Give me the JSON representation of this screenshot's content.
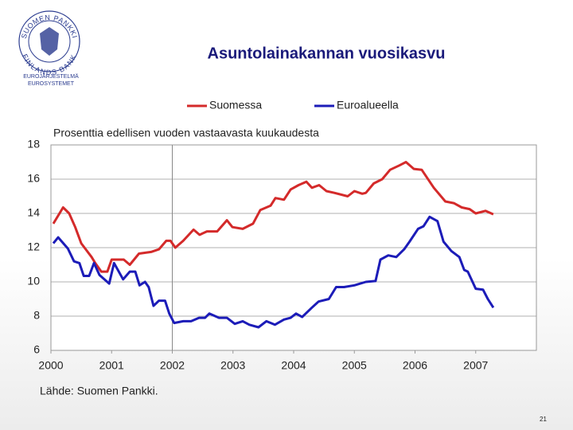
{
  "logo": {
    "ring_top": "SUOMEN PANKKI",
    "ring_bottom": "FINLANDS BANK",
    "line1": "EUROJÄRJESTELMÄ",
    "line2": "EUROSYSTEMET"
  },
  "source": "Lähde: Suomen Pankki.",
  "page_number": "21",
  "chart_data": {
    "type": "line",
    "title": "Asuntolainakannan vuosikasvu",
    "subtitle": "Prosenttia edellisen vuoden vastaavasta kuukaudesta",
    "xlim": [
      2000,
      2008
    ],
    "xticks": [
      2000,
      2001,
      2002,
      2003,
      2004,
      2005,
      2006,
      2007
    ],
    "ylim": [
      6,
      18
    ],
    "yticks": [
      6,
      8,
      10,
      12,
      14,
      16,
      18
    ],
    "grid": true,
    "vline": 2002,
    "legend": "top",
    "series": [
      {
        "name": "Suomessa",
        "color": "#d42a2a",
        "x": [
          2000.04,
          2000.2,
          2000.3,
          2000.4,
          2000.5,
          2000.67,
          2000.73,
          2000.83,
          2000.93,
          2001.0,
          2001.2,
          2001.3,
          2001.45,
          2001.65,
          2001.78,
          2001.9,
          2001.97,
          2002.05,
          2002.18,
          2002.35,
          2002.45,
          2002.57,
          2002.74,
          2002.9,
          2002.99,
          2003.16,
          2003.33,
          2003.45,
          2003.62,
          2003.7,
          2003.84,
          2003.95,
          2004.08,
          2004.21,
          2004.3,
          2004.42,
          2004.54,
          2004.67,
          2004.89,
          2005.0,
          2005.13,
          2005.19,
          2005.32,
          2005.46,
          2005.59,
          2005.74,
          2005.85,
          2005.98,
          2006.11,
          2006.31,
          2006.5,
          2006.64,
          2006.77,
          2006.9,
          2007.0,
          2007.16,
          2007.29
        ],
        "values": [
          13.4,
          14.35,
          14.0,
          13.2,
          12.25,
          11.45,
          11.1,
          10.6,
          10.6,
          11.3,
          11.3,
          11.0,
          11.65,
          11.75,
          11.9,
          12.4,
          12.4,
          12.0,
          12.4,
          13.05,
          12.75,
          12.95,
          12.95,
          13.6,
          13.2,
          13.1,
          13.4,
          14.2,
          14.45,
          14.9,
          14.8,
          15.4,
          15.65,
          15.85,
          15.5,
          15.65,
          15.3,
          15.2,
          15.0,
          15.3,
          15.15,
          15.2,
          15.75,
          16.0,
          16.55,
          16.8,
          17.0,
          16.6,
          16.55,
          15.5,
          14.7,
          14.6,
          14.35,
          14.25,
          14.0,
          14.15,
          13.95
        ]
      },
      {
        "name": "Euroalueella",
        "color": "#1c1cb8",
        "x": [
          2000.04,
          2000.12,
          2000.28,
          2000.38,
          2000.47,
          2000.54,
          2000.63,
          2000.71,
          2000.8,
          2000.96,
          2001.04,
          2001.19,
          2001.3,
          2001.39,
          2001.46,
          2001.55,
          2001.61,
          2001.69,
          2001.78,
          2001.88,
          2001.95,
          2002.03,
          2002.18,
          2002.31,
          2002.44,
          2002.54,
          2002.61,
          2002.77,
          2002.9,
          2003.03,
          2003.16,
          2003.27,
          2003.42,
          2003.55,
          2003.69,
          2003.84,
          2003.95,
          2004.04,
          2004.14,
          2004.3,
          2004.41,
          2004.58,
          2004.7,
          2004.83,
          2005.0,
          2005.19,
          2005.35,
          2005.43,
          2005.56,
          2005.69,
          2005.82,
          2005.91,
          2006.05,
          2006.14,
          2006.24,
          2006.37,
          2006.47,
          2006.6,
          2006.73,
          2006.81,
          2006.87,
          2007.0,
          2007.12,
          2007.2,
          2007.29
        ],
        "values": [
          12.25,
          12.6,
          11.95,
          11.2,
          11.1,
          10.35,
          10.35,
          11.1,
          10.4,
          9.9,
          11.1,
          10.15,
          10.6,
          10.6,
          9.8,
          10.0,
          9.7,
          8.6,
          8.9,
          8.9,
          8.15,
          7.6,
          7.7,
          7.7,
          7.9,
          7.9,
          8.15,
          7.9,
          7.9,
          7.55,
          7.7,
          7.5,
          7.35,
          7.7,
          7.5,
          7.8,
          7.9,
          8.15,
          7.95,
          8.5,
          8.85,
          9.0,
          9.7,
          9.7,
          9.8,
          10.0,
          10.05,
          11.3,
          11.55,
          11.45,
          11.9,
          12.35,
          13.1,
          13.25,
          13.8,
          13.55,
          12.35,
          11.8,
          11.45,
          10.7,
          10.6,
          9.6,
          9.55,
          9.0,
          8.5
        ]
      }
    ]
  }
}
